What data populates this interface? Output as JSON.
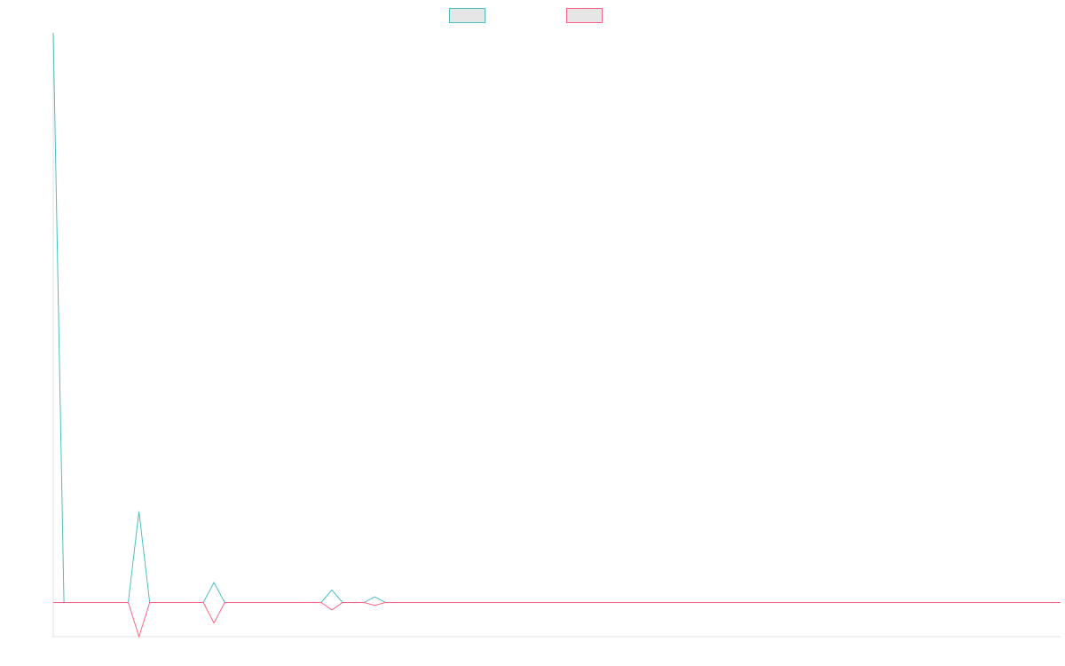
{
  "chart_data": {
    "type": "line",
    "x": [
      0,
      1,
      2,
      3,
      4,
      5,
      6,
      7,
      8,
      9,
      10,
      11,
      12,
      13,
      14,
      15,
      16,
      17,
      18,
      19,
      20,
      21,
      22,
      23,
      24,
      25,
      26,
      27,
      28,
      29,
      30,
      31,
      32,
      33,
      34,
      35,
      36,
      37,
      38,
      39,
      40,
      41,
      42,
      43,
      44,
      45,
      46,
      47,
      48,
      49,
      50,
      51,
      52,
      53,
      54,
      55,
      56,
      57,
      58,
      59,
      60,
      61,
      62,
      63,
      64,
      65,
      66,
      67,
      68,
      69,
      70,
      71,
      72,
      73,
      74,
      75,
      76,
      77,
      78,
      79,
      80,
      81,
      82,
      83,
      84,
      85,
      86,
      87,
      88,
      89,
      90,
      91,
      92,
      93,
      94
    ],
    "series": [
      {
        "color": "#4bc0c0",
        "values": [
          1000,
          0,
          0,
          0,
          0,
          0,
          0,
          0,
          160,
          0,
          0,
          0,
          0,
          0,
          0,
          35,
          0,
          0,
          0,
          0,
          0,
          0,
          0,
          0,
          0,
          0,
          22,
          0,
          0,
          0,
          10,
          0,
          0,
          0,
          0,
          0,
          0,
          0,
          0,
          0,
          0,
          0,
          0,
          0,
          0,
          0,
          0,
          0,
          0,
          0,
          0,
          0,
          0,
          0,
          0,
          0,
          0,
          0,
          0,
          0,
          0,
          0,
          0,
          0,
          0,
          0,
          0,
          0,
          0,
          0,
          0,
          0,
          0,
          0,
          0,
          0,
          0,
          0,
          0,
          0,
          0,
          0,
          0,
          0,
          0,
          0,
          0,
          0,
          0,
          0,
          0,
          0,
          0,
          0,
          0
        ]
      },
      {
        "color": "#ff6384",
        "values": [
          0,
          0,
          0,
          0,
          0,
          0,
          0,
          0,
          -60,
          0,
          0,
          0,
          0,
          0,
          0,
          -36,
          0,
          0,
          0,
          0,
          0,
          0,
          0,
          0,
          0,
          0,
          -13,
          0,
          0,
          0,
          -5,
          0,
          0,
          0,
          0,
          0,
          0,
          0,
          0,
          0,
          0,
          0,
          0,
          0,
          0,
          0,
          0,
          0,
          0,
          0,
          0,
          0,
          0,
          0,
          0,
          0,
          0,
          0,
          0,
          0,
          0,
          0,
          0,
          0,
          0,
          0,
          0,
          0,
          0,
          0,
          0,
          0,
          0,
          0,
          0,
          0,
          0,
          0,
          0,
          0,
          0,
          0,
          0,
          0,
          0,
          0,
          0,
          0,
          0,
          0,
          0,
          0,
          0,
          0,
          0
        ]
      }
    ],
    "xlim": [
      0,
      94
    ],
    "ylim": [
      -60,
      1000
    ],
    "grid": false,
    "legend_position": "top-center",
    "legend_swatch_fill": "#e6e6e6",
    "axis_color": "#e0e0e0"
  }
}
